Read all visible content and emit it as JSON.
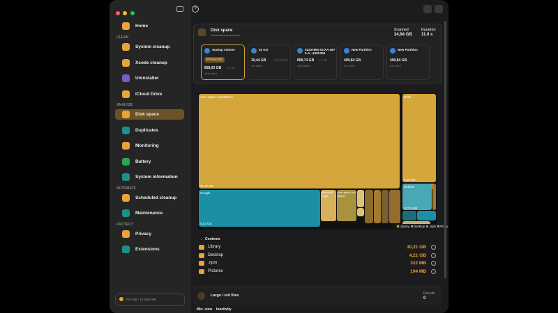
{
  "sidebar": {
    "home": "Home",
    "sections": [
      {
        "title": "CLEAN",
        "items": [
          "System cleanup",
          "Xcode cleanup",
          "Uninstaller",
          "iCloud Drive"
        ]
      },
      {
        "title": "ANALYZE",
        "items": [
          "Disk space",
          "Duplicates",
          "Monitoring",
          "Battery",
          "System information"
        ]
      },
      {
        "title": "AUTOMATE",
        "items": [
          "Scheduled cleanup",
          "Maintenance"
        ]
      },
      {
        "title": "PROTECT",
        "items": [
          "Privacy",
          "Extensions"
        ]
      }
    ],
    "trial": "Pro trial - 14 days left"
  },
  "header": {
    "title": "Disk space",
    "subtitle": "Hierarchical space view",
    "scanned_label": "Scanned",
    "scanned": "34,94 GB",
    "duration_label": "Duration",
    "duration": "11.0 s"
  },
  "volumes": [
    {
      "name": "Startup volume",
      "badge": "Protected",
      "size": "858,03 GB",
      "total": "/ 1 TB",
      "usage": "14% used"
    },
    {
      "name": "32 GO",
      "size": "30,44 GB",
      "total": "/ 31,44 GB",
      "usage": "3% used"
    },
    {
      "name": "5123789S-0CAA-4870-A...400FS84",
      "size": "858,74 GB",
      "total": "/ 1 TB",
      "usage": "14% used"
    },
    {
      "name": "New Partition",
      "size": "499,84 GB",
      "usage": "0% used"
    },
    {
      "name": "New Partition",
      "size": "499,84 GB",
      "usage": "0% used"
    }
  ],
  "treemap": {
    "labels": [
      "com~apple~CloudDocs",
      "21,47 GB",
      "Build",
      "6,19 GB",
      "Google",
      "5,03 GB",
      "Microsoft Edge",
      "com.apple.wallpaper",
      "website",
      "347,0 MB"
    ],
    "legend": [
      "Library",
      "Desktop",
      ".npm",
      "Pictures"
    ]
  },
  "contents": {
    "title": "Contents",
    "rows": [
      {
        "name": "Library",
        "size": "30,21 GB"
      },
      {
        "name": "Desktop",
        "size": "4,21 GB"
      },
      {
        "name": ".npm",
        "size": "322 MB"
      },
      {
        "name": "Pictures",
        "size": "194 MB"
      }
    ]
  },
  "large_files": {
    "title": "Large / old files",
    "results_label": "Results",
    "results": "0"
  },
  "footer_tabs": [
    "Min. view",
    "Inactivity"
  ]
}
